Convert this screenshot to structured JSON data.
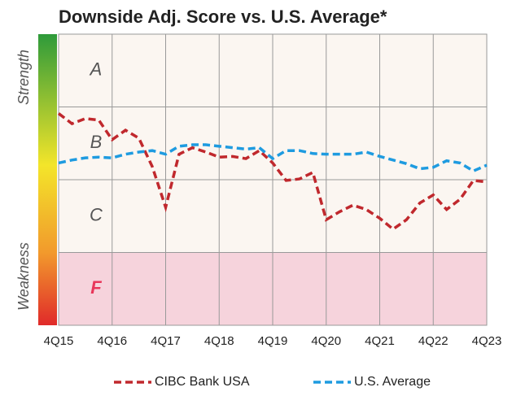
{
  "chart_data": {
    "type": "line",
    "title": "Downside Adj. Score vs. U.S. Average*",
    "axis_top_label": "Strength",
    "axis_bottom_label": "Weakness",
    "bands": [
      {
        "label": "A",
        "from": 3,
        "to": 4,
        "color": "#fbf6f1",
        "label_color": "#555555"
      },
      {
        "label": "B",
        "from": 2,
        "to": 3,
        "color": "#fbf6f1",
        "label_color": "#555555"
      },
      {
        "label": "C",
        "from": 1,
        "to": 2,
        "color": "#fbf6f1",
        "label_color": "#555555"
      },
      {
        "label": "F",
        "from": 0,
        "to": 1,
        "color": "#f6d3dc",
        "label_color": "#e8365a"
      }
    ],
    "categories": [
      "4Q15",
      null,
      null,
      null,
      "4Q16",
      null,
      null,
      null,
      "4Q17",
      null,
      null,
      null,
      "4Q18",
      null,
      null,
      null,
      "4Q19",
      null,
      null,
      null,
      "4Q20",
      null,
      null,
      null,
      "4Q21",
      null,
      null,
      null,
      "4Q22",
      null,
      null,
      null,
      "4Q23"
    ],
    "ylim": [
      0,
      4
    ],
    "series": [
      {
        "name": "CIBC Bank USA",
        "color": "#c0282d",
        "values": [
          2.91,
          2.77,
          2.84,
          2.82,
          2.55,
          2.68,
          2.57,
          2.18,
          1.62,
          2.35,
          2.44,
          2.38,
          2.31,
          2.32,
          2.29,
          2.4,
          2.23,
          1.99,
          2.01,
          2.1,
          1.45,
          1.56,
          1.65,
          1.59,
          1.47,
          1.32,
          1.45,
          1.68,
          1.79,
          1.59,
          1.73,
          1.99,
          1.97
        ]
      },
      {
        "name": "U.S. Average",
        "color": "#1e9be0",
        "values": [
          2.23,
          2.27,
          2.3,
          2.31,
          2.3,
          2.35,
          2.38,
          2.4,
          2.35,
          2.46,
          2.48,
          2.48,
          2.46,
          2.44,
          2.42,
          2.44,
          2.29,
          2.4,
          2.4,
          2.36,
          2.35,
          2.35,
          2.35,
          2.38,
          2.32,
          2.27,
          2.22,
          2.15,
          2.17,
          2.26,
          2.23,
          2.12,
          2.2
        ]
      }
    ]
  }
}
